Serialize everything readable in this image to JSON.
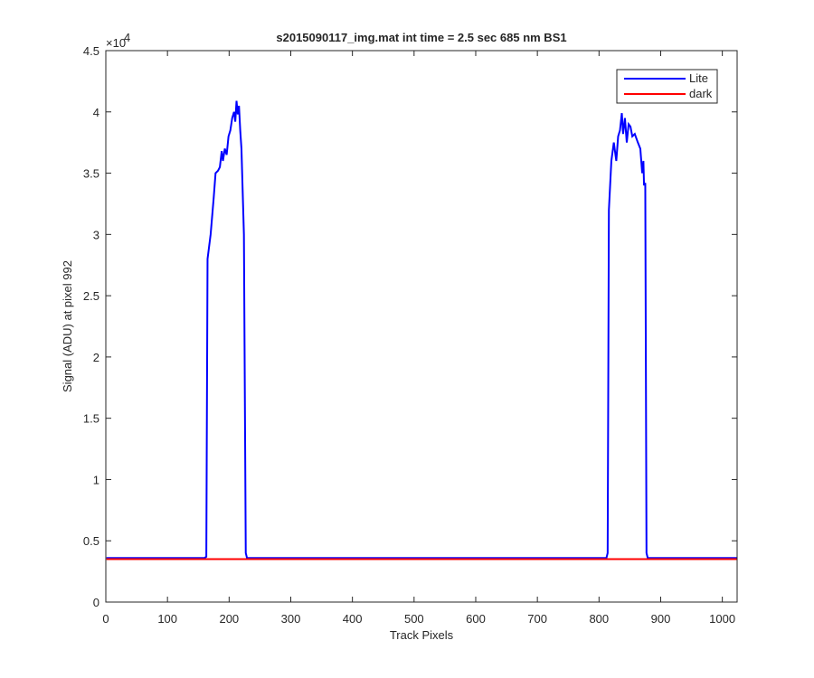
{
  "chart_data": {
    "type": "line",
    "title": "s2015090117_img.mat int time = 2.5 sec  685 nm BS1",
    "x_label": "Track Pixels",
    "y_label": "Signal (ADU) at pixel 992",
    "y_multiplier": {
      "base": "×10",
      "exponent": "4"
    },
    "xlim": [
      0,
      1024
    ],
    "ylim": [
      0,
      4.5
    ],
    "xticks": [
      0,
      100,
      200,
      300,
      400,
      500,
      600,
      700,
      800,
      900,
      1000
    ],
    "yticks": [
      0,
      0.5,
      1,
      1.5,
      2,
      2.5,
      3,
      3.5,
      4,
      4.5
    ],
    "grid": false,
    "legend": "northeast",
    "series": [
      {
        "name": "Lite",
        "color": "#0000ff",
        "x": [
          1,
          160,
          163,
          165,
          170,
          175,
          178,
          182,
          185,
          188,
          190,
          193,
          196,
          199,
          202,
          205,
          208,
          210,
          212,
          214,
          216,
          218,
          220,
          224,
          227,
          229,
          812,
          814,
          816,
          820,
          824,
          828,
          831,
          834,
          837,
          839,
          842,
          845,
          848,
          851,
          854,
          858,
          863,
          867,
          870,
          872,
          873,
          875,
          877,
          879,
          1024
        ],
        "values": [
          0.36,
          0.36,
          0.37,
          2.8,
          3.0,
          3.3,
          3.5,
          3.52,
          3.55,
          3.68,
          3.6,
          3.7,
          3.65,
          3.8,
          3.85,
          3.95,
          4.0,
          3.92,
          4.09,
          3.98,
          4.05,
          3.85,
          3.7,
          3.0,
          0.4,
          0.36,
          0.36,
          0.4,
          3.2,
          3.6,
          3.75,
          3.6,
          3.8,
          3.85,
          3.99,
          3.82,
          3.95,
          3.75,
          3.9,
          3.88,
          3.8,
          3.82,
          3.75,
          3.7,
          3.5,
          3.6,
          3.4,
          3.42,
          0.4,
          0.36,
          0.36
        ]
      },
      {
        "name": "dark",
        "color": "#ff0000",
        "x": [
          1,
          1024
        ],
        "values": [
          0.35,
          0.35
        ]
      }
    ]
  }
}
